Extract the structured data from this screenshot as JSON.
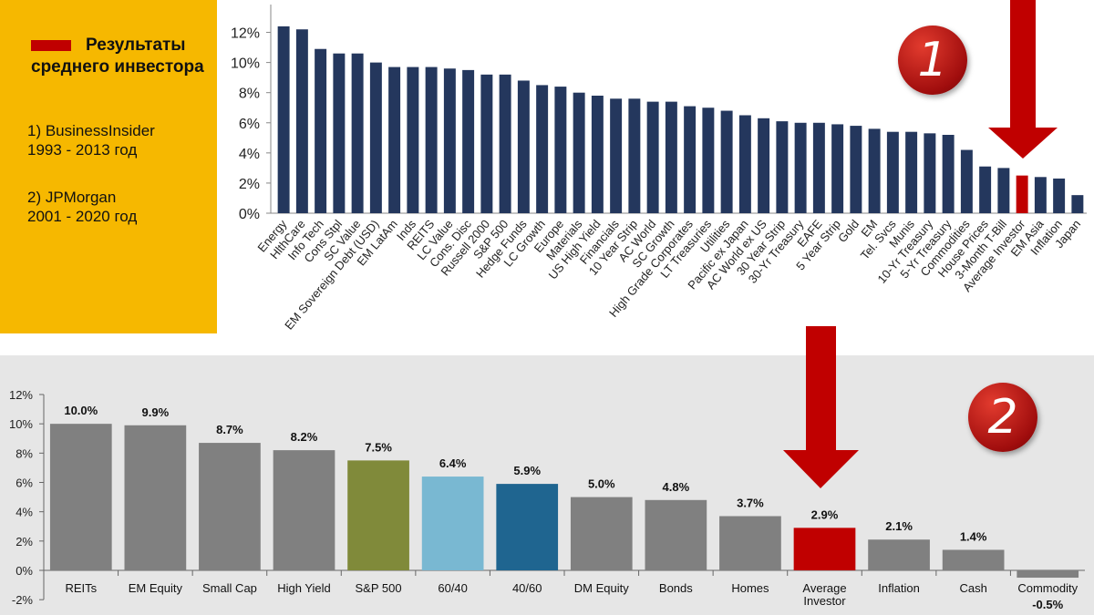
{
  "legend": {
    "title": "Результаты среднего инвестора",
    "source1_line1": "1) BusinessInsider",
    "source1_line2": "1993 - 2013 год",
    "source2_line1": "2) JPMorgan",
    "source2_line2": "2001 - 2020 год",
    "swatch_color": "#c00000"
  },
  "badges": {
    "top": "1",
    "bottom": "2"
  },
  "colors": {
    "top_bar": "#24375d",
    "highlight": "#c00000",
    "arrow": "#c00000",
    "gray_bar": "#808080"
  },
  "chart_data": [
    {
      "type": "bar",
      "ylim": [
        0,
        13
      ],
      "yticks": [
        "0%",
        "2%",
        "4%",
        "6%",
        "8%",
        "10%",
        "12%"
      ],
      "highlight_category": "Average Investor",
      "categories": [
        "Energy",
        "HlthCare",
        "Info Tech",
        "Cons Stpl",
        "SC Value",
        "EM Sovereign Debt (USD)",
        "EM LatAm",
        "Inds",
        "REITS",
        "LC Value",
        "Cons. Disc",
        "Russell 2000",
        "S&P 500",
        "Hedge Funds",
        "LC Growth",
        "Europe",
        "Materials",
        "US High Yield",
        "Financials",
        "10 Year Strip",
        "AC World",
        "SC Growth",
        "High Grade Corporates",
        "LT Treasuries",
        "Utilities",
        "Pacific ex Japan",
        "AC World ex US",
        "30 Year Strip",
        "30-Yr Treasury",
        "EAFE",
        "5 Year Strip",
        "Gold",
        "EM",
        "Tel. Svcs",
        "Munis",
        "10-Yr Treasury",
        "5-Yr Treasury",
        "Commodities",
        "House Prices",
        "3-Month T-Bill",
        "Average Investor",
        "EM Asia",
        "Inflation",
        "Japan"
      ],
      "values": [
        12.4,
        12.2,
        10.9,
        10.6,
        10.6,
        10.0,
        9.7,
        9.7,
        9.7,
        9.6,
        9.5,
        9.2,
        9.2,
        8.8,
        8.5,
        8.4,
        8.0,
        7.8,
        7.6,
        7.6,
        7.4,
        7.4,
        7.1,
        7.0,
        6.8,
        6.5,
        6.3,
        6.1,
        6.0,
        6.0,
        5.9,
        5.8,
        5.6,
        5.4,
        5.4,
        5.3,
        5.2,
        4.2,
        3.1,
        3.0,
        2.5,
        2.4,
        2.3,
        1.2
      ]
    },
    {
      "type": "bar",
      "ylim": [
        -2,
        12
      ],
      "yticks": [
        "-2%",
        "0%",
        "2%",
        "4%",
        "6%",
        "8%",
        "10%",
        "12%"
      ],
      "categories": [
        "REITs",
        "EM Equity",
        "Small Cap",
        "High Yield",
        "S&P 500",
        "60/40",
        "40/60",
        "DM Equity",
        "Bonds",
        "Homes",
        "Average Investor",
        "Inflation",
        "Cash",
        "Commodity"
      ],
      "category_lines": [
        [
          "REITs"
        ],
        [
          "EM Equity"
        ],
        [
          "Small Cap"
        ],
        [
          "High Yield"
        ],
        [
          "S&P 500"
        ],
        [
          "60/40"
        ],
        [
          "40/60"
        ],
        [
          "DM Equity"
        ],
        [
          "Bonds"
        ],
        [
          "Homes"
        ],
        [
          "Average",
          "Investor"
        ],
        [
          "Inflation"
        ],
        [
          "Cash"
        ],
        [
          "Commodity"
        ]
      ],
      "values": [
        10.0,
        9.9,
        8.7,
        8.2,
        7.5,
        6.4,
        5.9,
        5.0,
        4.8,
        3.7,
        2.9,
        2.1,
        1.4,
        -0.5
      ],
      "value_labels": [
        "10.0%",
        "9.9%",
        "8.7%",
        "8.2%",
        "7.5%",
        "6.4%",
        "5.9%",
        "5.0%",
        "4.8%",
        "3.7%",
        "2.9%",
        "2.1%",
        "1.4%",
        "-0.5%"
      ],
      "bar_colors": [
        "#808080",
        "#808080",
        "#808080",
        "#808080",
        "#808a3a",
        "#79b8d2",
        "#1f6590",
        "#808080",
        "#808080",
        "#808080",
        "#c00000",
        "#808080",
        "#808080",
        "#808080"
      ]
    }
  ]
}
